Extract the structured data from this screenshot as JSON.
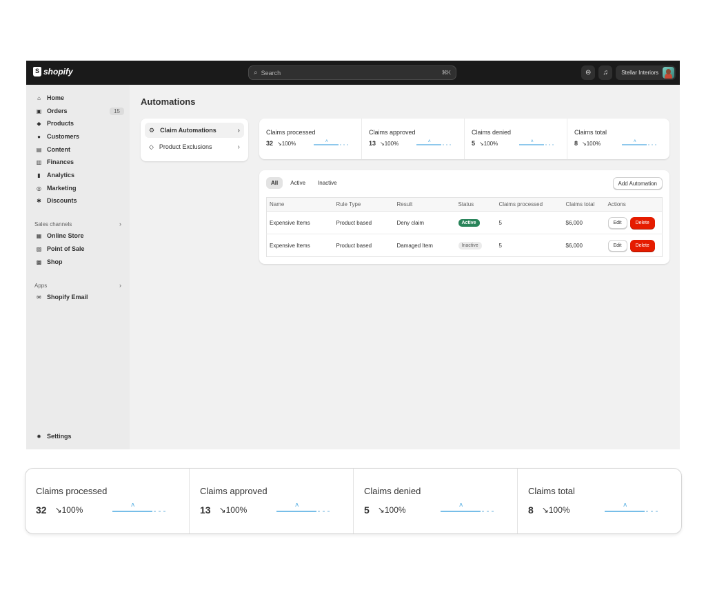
{
  "topbar": {
    "logo_text": "shopify",
    "search_placeholder": "Search",
    "search_shortcut": "⌘K",
    "store_name": "Stellar Interiors"
  },
  "sidebar": {
    "items": [
      {
        "label": "Home",
        "icon": "home-icon",
        "glyph": "⌂"
      },
      {
        "label": "Orders",
        "icon": "orders-icon",
        "glyph": "▣",
        "badge": "15"
      },
      {
        "label": "Products",
        "icon": "tag-icon",
        "glyph": "◆"
      },
      {
        "label": "Customers",
        "icon": "person-icon",
        "glyph": "●"
      },
      {
        "label": "Content",
        "icon": "content-icon",
        "glyph": "▤"
      },
      {
        "label": "Finances",
        "icon": "bank-icon",
        "glyph": "▥"
      },
      {
        "label": "Analytics",
        "icon": "bar-chart-icon",
        "glyph": "▮"
      },
      {
        "label": "Marketing",
        "icon": "target-icon",
        "glyph": "◎"
      },
      {
        "label": "Discounts",
        "icon": "discount-icon",
        "glyph": "✱"
      }
    ],
    "sales_channels_label": "Sales channels",
    "sales_channels": [
      {
        "label": "Online Store",
        "icon": "store-icon",
        "glyph": "▦"
      },
      {
        "label": "Point of Sale",
        "icon": "pos-icon",
        "glyph": "▧"
      },
      {
        "label": "Shop",
        "icon": "shop-icon",
        "glyph": "▩"
      }
    ],
    "apps_label": "Apps",
    "apps": [
      {
        "label": "Shopify Email",
        "icon": "email-icon",
        "glyph": "✉"
      }
    ],
    "settings_label": "Settings"
  },
  "main": {
    "title": "Automations",
    "menu": [
      {
        "label": "Claim Automations"
      },
      {
        "label": "Product Exclusions"
      }
    ],
    "stats": [
      {
        "label": "Claims processed",
        "value": "32",
        "change": "↘100%"
      },
      {
        "label": "Claims approved",
        "value": "13",
        "change": "↘100%"
      },
      {
        "label": "Claims denied",
        "value": "5",
        "change": "↘100%"
      },
      {
        "label": "Claims total",
        "value": "8",
        "change": "↘100%"
      }
    ],
    "filters": [
      "All",
      "Active",
      "Inactive"
    ],
    "add_button": "Add Automation",
    "table": {
      "headers": [
        "Name",
        "Rule Type",
        "Result",
        "Status",
        "Claims processed",
        "Claims total",
        "Actions"
      ],
      "rows": [
        {
          "name": "Expensive Items",
          "rule_type": "Product based",
          "result": "Deny claim",
          "status": "Active",
          "claims_processed": "5",
          "claims_total": "$6,000",
          "edit": "Edit",
          "delete": "Delete"
        },
        {
          "name": "Expensive Items",
          "rule_type": "Product based",
          "result": "Damaged Item",
          "status": "Inactive",
          "claims_processed": "5",
          "claims_total": "$6,000",
          "edit": "Edit",
          "delete": "Delete"
        }
      ]
    }
  },
  "big_stats": [
    {
      "label": "Claims processed",
      "value": "32",
      "change": "↘100%"
    },
    {
      "label": "Claims approved",
      "value": "13",
      "change": "↘100%"
    },
    {
      "label": "Claims denied",
      "value": "5",
      "change": "↘100%"
    },
    {
      "label": "Claims total",
      "value": "8",
      "change": "↘100%"
    }
  ],
  "colors": {
    "topbar": "#1a1a1a",
    "sparkline": "#4aa8e0",
    "status_active": "#29845a",
    "delete": "#e51c00"
  }
}
